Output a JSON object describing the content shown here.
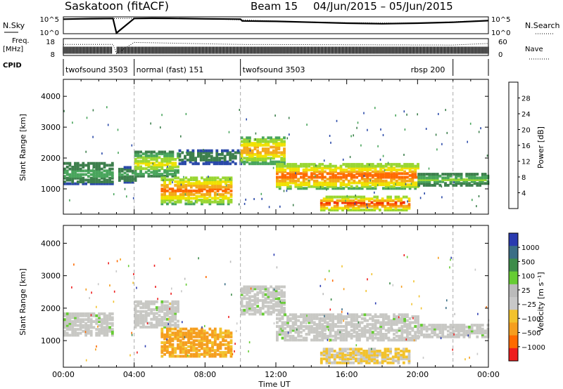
{
  "header": {
    "station": "Saskatoon  (fitACF)",
    "beam": "Beam 15",
    "date_range": "04/Jun/2015 – 05/Jun/2015"
  },
  "left_labels": {
    "nsky": "N.Sky",
    "freq": "Freq.",
    "freq_unit": "[MHz]",
    "cpid": "CPID"
  },
  "right_labels": {
    "nsearch": "N.Search",
    "nave": "Nave"
  },
  "panel_ticks": {
    "noise_left": [
      "10^5",
      "10^0"
    ],
    "noise_right": [
      "10^5",
      "10^0"
    ],
    "freq_left": [
      "18",
      "8"
    ],
    "freq_right": [
      "60",
      "0"
    ]
  },
  "cpid_segments": [
    {
      "label": "twofsound 3503",
      "start_hour": 0.0
    },
    {
      "label": "normal (fast) 151",
      "start_hour": 4.0
    },
    {
      "label": "twofsound 3503",
      "start_hour": 10.0
    },
    {
      "label": "rbsp 200",
      "start_hour": 22.0
    }
  ],
  "colors": {
    "power": [
      "#0000ff",
      "#2a49a8",
      "#3d7f4c",
      "#49a55c",
      "#99d632",
      "#f0e100",
      "#f3a91a",
      "#ff6a00",
      "#f22d00",
      "#ff0000"
    ],
    "velocity": [
      "#2a3bb0",
      "#3b6e86",
      "#3d8c4a",
      "#66cc33",
      "#bbbbbb",
      "#c8c8c8",
      "#f2c22d",
      "#f59e1f",
      "#ff6a00",
      "#ee1d1d"
    ],
    "velocity_gray": "#c8c8c4"
  },
  "chart_data": [
    {
      "type": "line",
      "title": "N.Sky / N.Search",
      "x_range_hours": [
        0,
        24
      ],
      "y_scale": "log",
      "ylim": [
        1,
        100000
      ],
      "series": [
        {
          "name": "N.Sky",
          "x": [
            0,
            1,
            2,
            2.8,
            3,
            4,
            5,
            6,
            8,
            10,
            10.1,
            12,
            14,
            16,
            18,
            20,
            22,
            24
          ],
          "y": [
            30000,
            40000,
            45000,
            50000,
            1,
            50000,
            60000,
            55000,
            40000,
            30000,
            8000,
            6000,
            3000,
            1500,
            1000,
            1500,
            3000,
            10000
          ]
        },
        {
          "name": "N.Search",
          "x": [
            0,
            4,
            8,
            12,
            16,
            20,
            24
          ],
          "y": [
            35000,
            55000,
            45000,
            7000,
            2000,
            1500,
            12000
          ]
        }
      ]
    },
    {
      "type": "line",
      "title": "Freq. / Nave",
      "x_range_hours": [
        0,
        24
      ],
      "ylim_left": [
        8,
        18
      ],
      "ylim_right": [
        0,
        60
      ],
      "series": [
        {
          "name": "Freq.",
          "x": [
            0,
            24
          ],
          "y": [
            10.5,
            10.5
          ]
        },
        {
          "name": "Nave",
          "x": [
            0,
            2.8,
            3,
            4,
            10,
            22,
            24
          ],
          "y": [
            40,
            40,
            5,
            48,
            40,
            38,
            44
          ]
        }
      ]
    },
    {
      "type": "heatmap",
      "title": "Power",
      "xlabel": "",
      "ylabel": "Slant Range [km]",
      "x_range_hours": [
        0,
        24
      ],
      "ylim": [
        180,
        4550
      ],
      "yticks": [
        1000,
        2000,
        3000,
        4000
      ],
      "colorbar_label": "Power [dB]",
      "colorbar_ticks": [
        4,
        8,
        12,
        16,
        20,
        24,
        28
      ],
      "zlim": [
        0,
        32
      ],
      "features": [
        {
          "t_start": 0.0,
          "t_end": 2.8,
          "range_low": 1150,
          "range_high": 1850,
          "peak_db": 10
        },
        {
          "t_start": 3.1,
          "t_end": 4.0,
          "range_low": 1200,
          "range_high": 1700,
          "peak_db": 9
        },
        {
          "t_start": 4.0,
          "t_end": 6.5,
          "range_low": 1400,
          "range_high": 2200,
          "peak_db": 16
        },
        {
          "t_start": 5.5,
          "t_end": 9.5,
          "range_low": 500,
          "range_high": 1400,
          "peak_db": 22
        },
        {
          "t_start": 6.5,
          "t_end": 10.0,
          "range_low": 1800,
          "range_high": 2250,
          "peak_db": 8
        },
        {
          "t_start": 10.0,
          "t_end": 12.5,
          "range_low": 1800,
          "range_high": 2700,
          "peak_db": 20
        },
        {
          "t_start": 12.0,
          "t_end": 20.0,
          "range_low": 1000,
          "range_high": 1800,
          "peak_db": 24
        },
        {
          "t_start": 14.5,
          "t_end": 19.5,
          "range_low": 300,
          "range_high": 750,
          "peak_db": 25
        },
        {
          "t_start": 20.0,
          "t_end": 24.0,
          "range_low": 1100,
          "range_high": 1500,
          "peak_db": 12
        }
      ]
    },
    {
      "type": "heatmap",
      "title": "Velocity",
      "xlabel": "Time UT",
      "ylabel": "Slant Range [km]",
      "x_range_hours": [
        0,
        24
      ],
      "xticks": [
        "00:00",
        "04:00",
        "08:00",
        "12:00",
        "16:00",
        "20:00",
        "00:00"
      ],
      "ylim": [
        180,
        4550
      ],
      "yticks": [
        1000,
        2000,
        3000,
        4000
      ],
      "colorbar_label": "Velocity [m s⁻¹]",
      "colorbar_ticks": [
        "1000",
        "500",
        "100",
        "25",
        "−25",
        "−100",
        "−500",
        "−1000"
      ],
      "features": [
        {
          "t_start": 0.0,
          "t_end": 2.8,
          "range_low": 1150,
          "range_high": 1850,
          "velocity": 0
        },
        {
          "t_start": 4.0,
          "t_end": 6.5,
          "range_low": 1400,
          "range_high": 2200,
          "velocity": 0
        },
        {
          "t_start": 5.5,
          "t_end": 9.5,
          "range_low": 500,
          "range_high": 1400,
          "velocity": -150
        },
        {
          "t_start": 10.0,
          "t_end": 12.5,
          "range_low": 1800,
          "range_high": 2700,
          "velocity": 0
        },
        {
          "t_start": 12.0,
          "t_end": 20.0,
          "range_low": 1000,
          "range_high": 1800,
          "velocity": 0
        },
        {
          "t_start": 14.5,
          "t_end": 19.5,
          "range_low": 300,
          "range_high": 750,
          "velocity": -60
        },
        {
          "t_start": 20.0,
          "t_end": 24.0,
          "range_low": 1100,
          "range_high": 1500,
          "velocity": 0
        }
      ]
    }
  ]
}
